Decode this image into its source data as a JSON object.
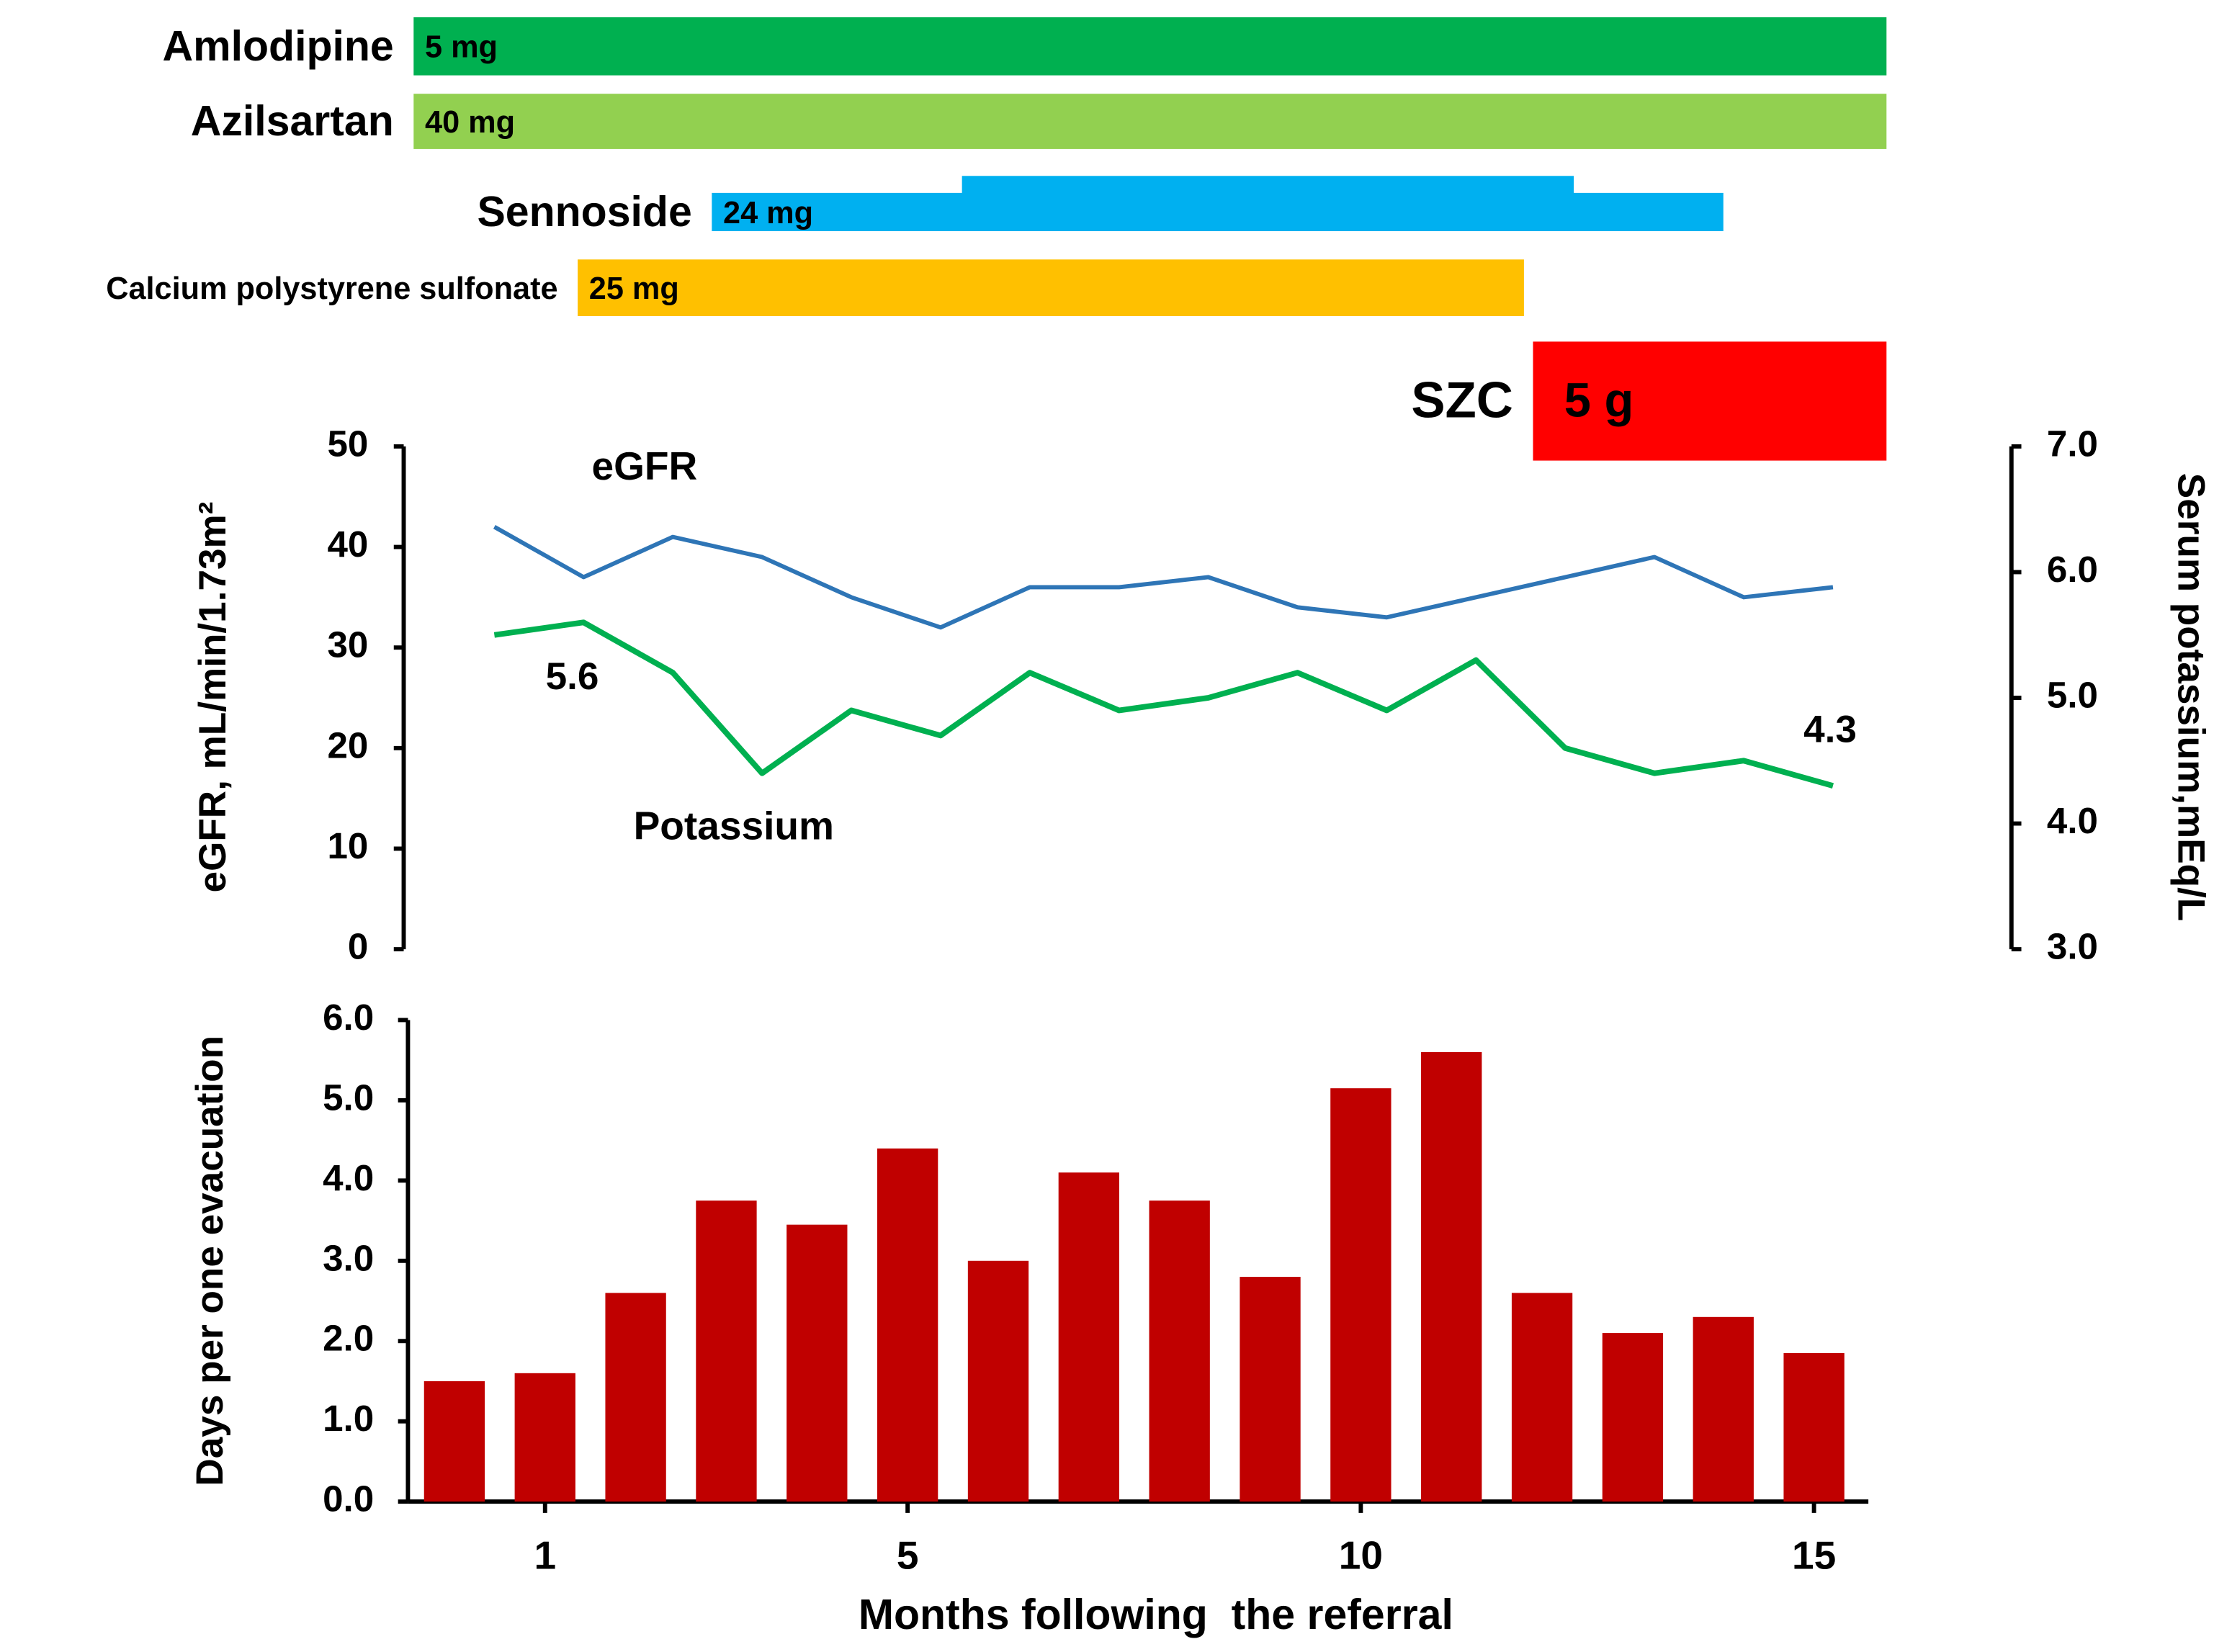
{
  "chart_data": [
    {
      "type": "timeline",
      "bars": [
        {
          "name": "Amlodipine",
          "dose": "5 mg",
          "color": "#00b050",
          "periods": [
            [
              -0.45,
              15.8
            ]
          ]
        },
        {
          "name": "Azilsartan",
          "dose": "40 mg",
          "color": "#92d050",
          "periods": [
            [
              -0.45,
              15.8
            ]
          ]
        },
        {
          "name": "Sennoside",
          "dose": "24 mg",
          "color": "#00b0f0",
          "periods": [
            [
              2.84,
              14.0
            ],
            [
              5.6,
              12.35
            ]
          ]
        },
        {
          "name": "Calcium polystyrene sulfonate",
          "dose": "25 mg",
          "color": "#ffc000",
          "periods": [
            [
              1.36,
              11.8
            ]
          ]
        },
        {
          "name": "SZC",
          "dose": "5 g",
          "color": "#ff0000",
          "periods": [
            [
              11.9,
              15.8
            ]
          ]
        }
      ]
    },
    {
      "type": "line",
      "ylabel": "eGFR, mL/min/1.73m²",
      "y2label": "Serum potassium,mEq/L",
      "ylim": [
        0,
        50
      ],
      "yticks": [
        0,
        10,
        20,
        30,
        40,
        50
      ],
      "y2lim": [
        3,
        7
      ],
      "y2ticks": [
        {
          "value": 3,
          "label": "3.0"
        },
        {
          "value": 4,
          "label": "4.0"
        },
        {
          "value": 5,
          "label": "5.0"
        },
        {
          "value": 6,
          "label": "6.0"
        },
        {
          "value": 7,
          "label": "7.0"
        }
      ],
      "series": [
        {
          "name": "eGFR",
          "color": "#2e75b6",
          "values": [
            42,
            37,
            41,
            39,
            35,
            32,
            36,
            36,
            37,
            34,
            33,
            35,
            37,
            39,
            35,
            36
          ]
        },
        {
          "name": "Potassium",
          "color": "#00b050",
          "axis": "y2",
          "values": [
            5.5,
            5.6,
            5.2,
            4.4,
            4.9,
            4.7,
            5.2,
            4.9,
            5.0,
            5.2,
            4.9,
            5.3,
            4.6,
            4.4,
            4.5,
            4.3
          ],
          "value_labels": [
            null,
            "5.6",
            null,
            null,
            null,
            null,
            null,
            null,
            null,
            null,
            null,
            null,
            null,
            null,
            null,
            "4.3"
          ]
        }
      ]
    },
    {
      "type": "bar",
      "xlabel": "Months following  the referral",
      "ylabel": "Days per one evacuation",
      "x": [
        0,
        1,
        2,
        3,
        4,
        5,
        6,
        7,
        8,
        9,
        10,
        11,
        12,
        13,
        14,
        15
      ],
      "values": [
        1.5,
        1.6,
        2.6,
        3.75,
        3.45,
        4.4,
        3.0,
        4.1,
        3.75,
        2.8,
        5.15,
        5.6,
        2.6,
        2.1,
        2.3,
        1.85
      ],
      "color": "#c00000",
      "xlim": [
        -0.45,
        15.6
      ],
      "xticks": [
        1,
        5,
        10,
        15
      ],
      "ylim": [
        0,
        6
      ],
      "yticks": [
        {
          "value": 0,
          "label": "0.0"
        },
        {
          "value": 1,
          "label": "1.0"
        },
        {
          "value": 2,
          "label": "2.0"
        },
        {
          "value": 3,
          "label": "3.0"
        },
        {
          "value": 4,
          "label": "4.0"
        },
        {
          "value": 5,
          "label": "5.0"
        },
        {
          "value": 6,
          "label": "6.0"
        }
      ]
    }
  ]
}
